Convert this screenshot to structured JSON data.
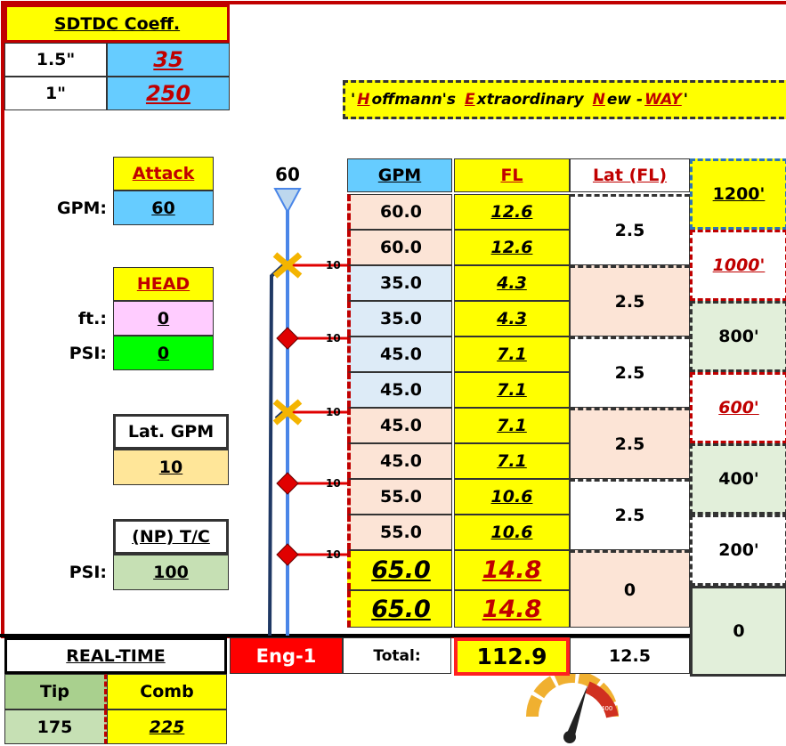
{
  "coeff": {
    "title": "SDTDC Coeff.",
    "rows": [
      [
        "1.5\"",
        "35"
      ],
      [
        "1\"",
        "250"
      ]
    ]
  },
  "banner": [
    "'",
    "H",
    "offmann's",
    "E",
    "xtraordinary",
    "N",
    "ew -",
    "WAY",
    "'"
  ],
  "inputs": {
    "attack": {
      "title": "Attack",
      "label": "GPM:",
      "value": "60"
    },
    "head": {
      "title": "HEAD",
      "rows": [
        [
          "ft.:",
          "0"
        ],
        [
          "PSI:",
          "0"
        ]
      ]
    },
    "lat_gpm": {
      "title": "Lat. GPM",
      "value": "10"
    },
    "np": {
      "title": "(NP) T/C",
      "label": "PSI:",
      "value": "100"
    }
  },
  "hose": {
    "top": "60",
    "markers": [
      "10",
      "10",
      "10",
      "10",
      "10"
    ]
  },
  "table": {
    "headers": [
      "GPM",
      "FL",
      "Lat (FL)"
    ],
    "rows": [
      [
        "60.0",
        "12.6"
      ],
      [
        "60.0",
        "12.6"
      ],
      [
        "35.0",
        "4.3"
      ],
      [
        "35.0",
        "4.3"
      ],
      [
        "45.0",
        "7.1"
      ],
      [
        "45.0",
        "7.1"
      ],
      [
        "45.0",
        "7.1"
      ],
      [
        "45.0",
        "7.1"
      ],
      [
        "55.0",
        "10.6"
      ],
      [
        "55.0",
        "10.6"
      ],
      [
        "65.0",
        "14.8"
      ],
      [
        "65.0",
        "14.8"
      ]
    ],
    "lat": [
      "2.5",
      "2.5",
      "2.5",
      "2.5",
      "2.5",
      "0"
    ],
    "distances": [
      "1200'",
      "1000'",
      "800'",
      "600'",
      "400'",
      "200'",
      "0"
    ]
  },
  "footer": {
    "realtime": "REAL-TIME",
    "engine": "Eng-1",
    "total_label": "Total:",
    "total": "112.9",
    "lat_total": "12.5",
    "headers": [
      "Tip",
      "Comb"
    ],
    "values": [
      "175",
      "225"
    ]
  },
  "gauge": [
    "200",
    "400"
  ]
}
